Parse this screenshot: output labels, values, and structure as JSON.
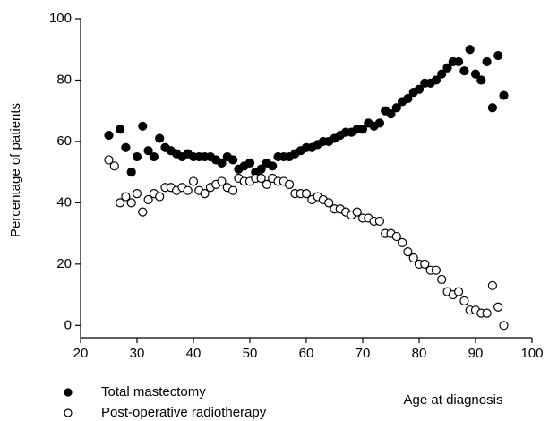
{
  "chart_data": {
    "type": "scatter",
    "x_label": "Age at diagnosis",
    "y_label": "Percentage of patients",
    "x": [
      25,
      26,
      27,
      28,
      29,
      30,
      31,
      32,
      33,
      34,
      35,
      36,
      37,
      38,
      39,
      40,
      41,
      42,
      43,
      44,
      45,
      46,
      47,
      48,
      49,
      50,
      51,
      52,
      53,
      54,
      55,
      56,
      57,
      58,
      59,
      60,
      61,
      62,
      63,
      64,
      65,
      66,
      67,
      68,
      69,
      70,
      71,
      72,
      73,
      74,
      75,
      76,
      77,
      78,
      79,
      80,
      81,
      82,
      83,
      84,
      85,
      86,
      87,
      88,
      89,
      90,
      91,
      92,
      93,
      94,
      95
    ],
    "series": [
      {
        "name": "Total mastectomy",
        "color": "#000000",
        "marker": "filled",
        "values": [
          62,
          null,
          64,
          58,
          50,
          55,
          65,
          57,
          55,
          61,
          58,
          57,
          56,
          55,
          56,
          55,
          55,
          55,
          55,
          54,
          53,
          55,
          54,
          51,
          52,
          53,
          50,
          51,
          53,
          52,
          55,
          55,
          55,
          56,
          57,
          58,
          58,
          59,
          60,
          60,
          61,
          62,
          63,
          63,
          64,
          64,
          66,
          65,
          66,
          70,
          69,
          71,
          73,
          74,
          76,
          77,
          79,
          79,
          80,
          82,
          84,
          86,
          86,
          83,
          90,
          82,
          80,
          86,
          71,
          88,
          75
        ]
      },
      {
        "name": "Post-operative radiotherapy",
        "color": "#000000",
        "marker": "open",
        "values": [
          54,
          52,
          40,
          42,
          40,
          43,
          37,
          41,
          43,
          42,
          45,
          45,
          44,
          45,
          44,
          47,
          44,
          43,
          45,
          46,
          47,
          45,
          44,
          48,
          47,
          47,
          48,
          48,
          46,
          48,
          47,
          47,
          46,
          43,
          43,
          43,
          41,
          42,
          41,
          40,
          38,
          38,
          37,
          36,
          37,
          35,
          35,
          34,
          34,
          30,
          30,
          29,
          27,
          24,
          22,
          20,
          20,
          18,
          18,
          15,
          11,
          10,
          11,
          8,
          5,
          5,
          4,
          4,
          13,
          6,
          0
        ]
      }
    ],
    "xlim": [
      20,
      100
    ],
    "xticks": [
      20,
      30,
      40,
      50,
      60,
      70,
      80,
      90,
      100
    ],
    "ylim": [
      -4,
      100
    ],
    "yticks": [
      0,
      20,
      40,
      60,
      80,
      100
    ]
  }
}
